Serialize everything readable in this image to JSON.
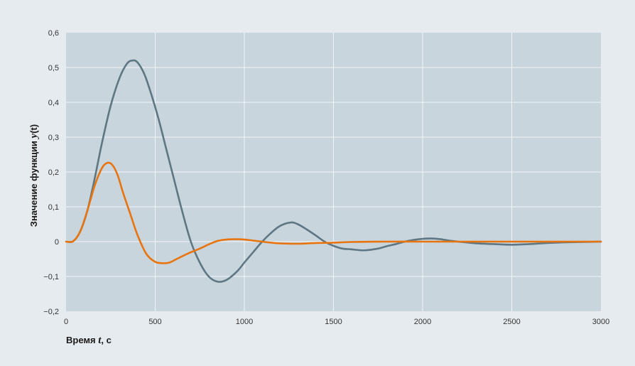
{
  "chart_data": {
    "type": "line",
    "xlabel": {
      "prefix": "Время ",
      "var": "t",
      "suffix": ", с"
    },
    "ylabel": {
      "prefix": "Значение функции ",
      "var": "y",
      "suffix": "(t)"
    },
    "xlim": [
      0,
      3000
    ],
    "ylim": [
      -0.2,
      0.6
    ],
    "x_ticks": [
      0,
      500,
      1000,
      1500,
      2000,
      2500,
      3000
    ],
    "x_tick_labels": [
      "0",
      "500",
      "1000",
      "1500",
      "2000",
      "2500",
      "3000"
    ],
    "y_ticks": [
      -0.2,
      -0.1,
      0,
      0.1,
      0.2,
      0.3,
      0.4,
      0.5,
      0.6
    ],
    "y_tick_labels": [
      "−0,2",
      "−0,1",
      "0",
      "0,1",
      "0,2",
      "0,3",
      "0,4",
      "0,5",
      "0,6"
    ],
    "grid": true,
    "legend": "none",
    "colors": {
      "background": "#e6ebef",
      "plot_area": "#c8d5dd",
      "grid": "#f2f5f7"
    },
    "series": [
      {
        "color": "#5f7683",
        "x": [
          0,
          40,
          80,
          120,
          160,
          200,
          250,
          300,
          340,
          370,
          400,
          440,
          480,
          520,
          560,
          600,
          650,
          700,
          750,
          800,
          850,
          900,
          960,
          1000,
          1050,
          1100,
          1150,
          1200,
          1260,
          1300,
          1350,
          1400,
          1450,
          1500,
          1550,
          1600,
          1670,
          1750,
          1800,
          1850,
          1900,
          1950,
          2000,
          2050,
          2100,
          2150,
          2200,
          2300,
          2400,
          2500,
          2600,
          2700,
          2800,
          2900,
          3000
        ],
        "y": [
          0,
          0.001,
          0.03,
          0.09,
          0.18,
          0.28,
          0.39,
          0.47,
          0.51,
          0.52,
          0.515,
          0.48,
          0.42,
          0.35,
          0.27,
          0.19,
          0.09,
          0.0,
          -0.06,
          -0.1,
          -0.115,
          -0.11,
          -0.085,
          -0.06,
          -0.03,
          0.0,
          0.025,
          0.045,
          0.055,
          0.05,
          0.035,
          0.018,
          0.0,
          -0.012,
          -0.02,
          -0.022,
          -0.025,
          -0.02,
          -0.013,
          -0.007,
          0.0,
          0.005,
          0.008,
          0.009,
          0.007,
          0.003,
          0.0,
          -0.005,
          -0.007,
          -0.009,
          -0.007,
          -0.004,
          -0.002,
          -0.001,
          0
        ]
      },
      {
        "color": "#e8740f",
        "x": [
          0,
          40,
          80,
          120,
          160,
          200,
          230,
          260,
          290,
          320,
          360,
          400,
          450,
          500,
          550,
          580,
          620,
          680,
          750,
          800,
          850,
          900,
          960,
          1000,
          1050,
          1100,
          1150,
          1200,
          1300,
          1400,
          1500,
          1600,
          1800,
          2000,
          2200,
          2400,
          2600,
          2800,
          3000
        ],
        "y": [
          0,
          0.001,
          0.03,
          0.09,
          0.16,
          0.21,
          0.226,
          0.22,
          0.19,
          0.14,
          0.08,
          0.02,
          -0.035,
          -0.058,
          -0.062,
          -0.06,
          -0.05,
          -0.035,
          -0.02,
          -0.008,
          0.002,
          0.006,
          0.007,
          0.006,
          0.003,
          0.0,
          -0.003,
          -0.005,
          -0.006,
          -0.004,
          -0.003,
          -0.001,
          0.0,
          0.0,
          0.0,
          0.0,
          0.0,
          0.0,
          0
        ]
      }
    ]
  }
}
